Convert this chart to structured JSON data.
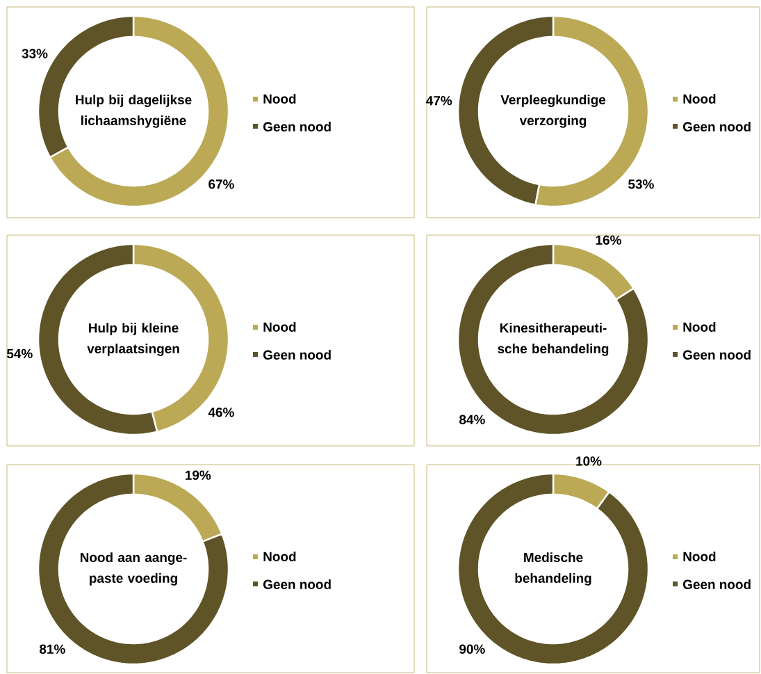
{
  "chart_data": [
    {
      "type": "donut",
      "title": "Hulp bij dagelijkse lichaamshygiëne",
      "categories": [
        "Nood",
        "Geen nood"
      ],
      "values": [
        67,
        33
      ],
      "colors": [
        "#bba955",
        "#5f5427"
      ],
      "value_labels": [
        "67%",
        "33%"
      ],
      "legend": "right"
    },
    {
      "type": "donut",
      "title": "Verpleegkundige verzorging",
      "categories": [
        "Nood",
        "Geen nood"
      ],
      "values": [
        53,
        47
      ],
      "colors": [
        "#bba955",
        "#5f5427"
      ],
      "value_labels": [
        "53%",
        "47%"
      ],
      "legend": "right"
    },
    {
      "type": "donut",
      "title": "Hulp bij kleine verplaatsingen",
      "categories": [
        "Nood",
        "Geen nood"
      ],
      "values": [
        46,
        54
      ],
      "colors": [
        "#bba955",
        "#5f5427"
      ],
      "value_labels": [
        "46%",
        "54%"
      ],
      "legend": "right"
    },
    {
      "type": "donut",
      "title": "Kinesitherapeuti- sche behandeling",
      "categories": [
        "Nood",
        "Geen nood"
      ],
      "values": [
        16,
        84
      ],
      "colors": [
        "#bba955",
        "#5f5427"
      ],
      "value_labels": [
        "16%",
        "84%"
      ],
      "legend": "right"
    },
    {
      "type": "donut",
      "title": "Nood aan aange- paste voeding",
      "categories": [
        "Nood",
        "Geen nood"
      ],
      "values": [
        19,
        81
      ],
      "colors": [
        "#bba955",
        "#5f5427"
      ],
      "value_labels": [
        "19%",
        "81%"
      ],
      "legend": "right"
    },
    {
      "type": "donut",
      "title": "Medische behandeling",
      "categories": [
        "Nood",
        "Geen nood"
      ],
      "values": [
        10,
        90
      ],
      "colors": [
        "#bba955",
        "#5f5427"
      ],
      "value_labels": [
        "10%",
        "90%"
      ],
      "legend": "right"
    }
  ]
}
